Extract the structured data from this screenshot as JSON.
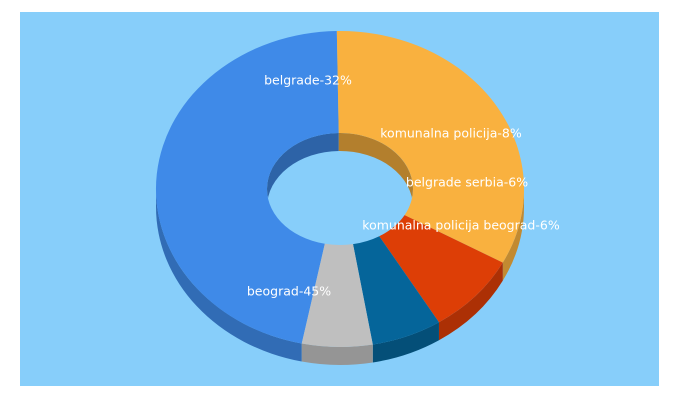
{
  "chart_data": {
    "type": "pie",
    "style": "3d-donut",
    "background": "#87cefa",
    "slices": [
      {
        "label": "beograd",
        "value": 45,
        "color": "#3f8ae8"
      },
      {
        "label": "belgrade",
        "value": 32,
        "color": "#f9b13f"
      },
      {
        "label": "komunalna policija",
        "value": 8,
        "color": "#dd3e06"
      },
      {
        "label": "belgrade serbia",
        "value": 6,
        "color": "#05659a"
      },
      {
        "label": "komunalna policija beograd",
        "value": 6,
        "color": "#bfbfbf"
      }
    ],
    "label_texts": [
      "beograd-45%",
      "belgrade-32%",
      "komunalna policija-8%",
      "belgrade serbia-6%",
      "komunalna policija beograd-6%"
    ]
  }
}
